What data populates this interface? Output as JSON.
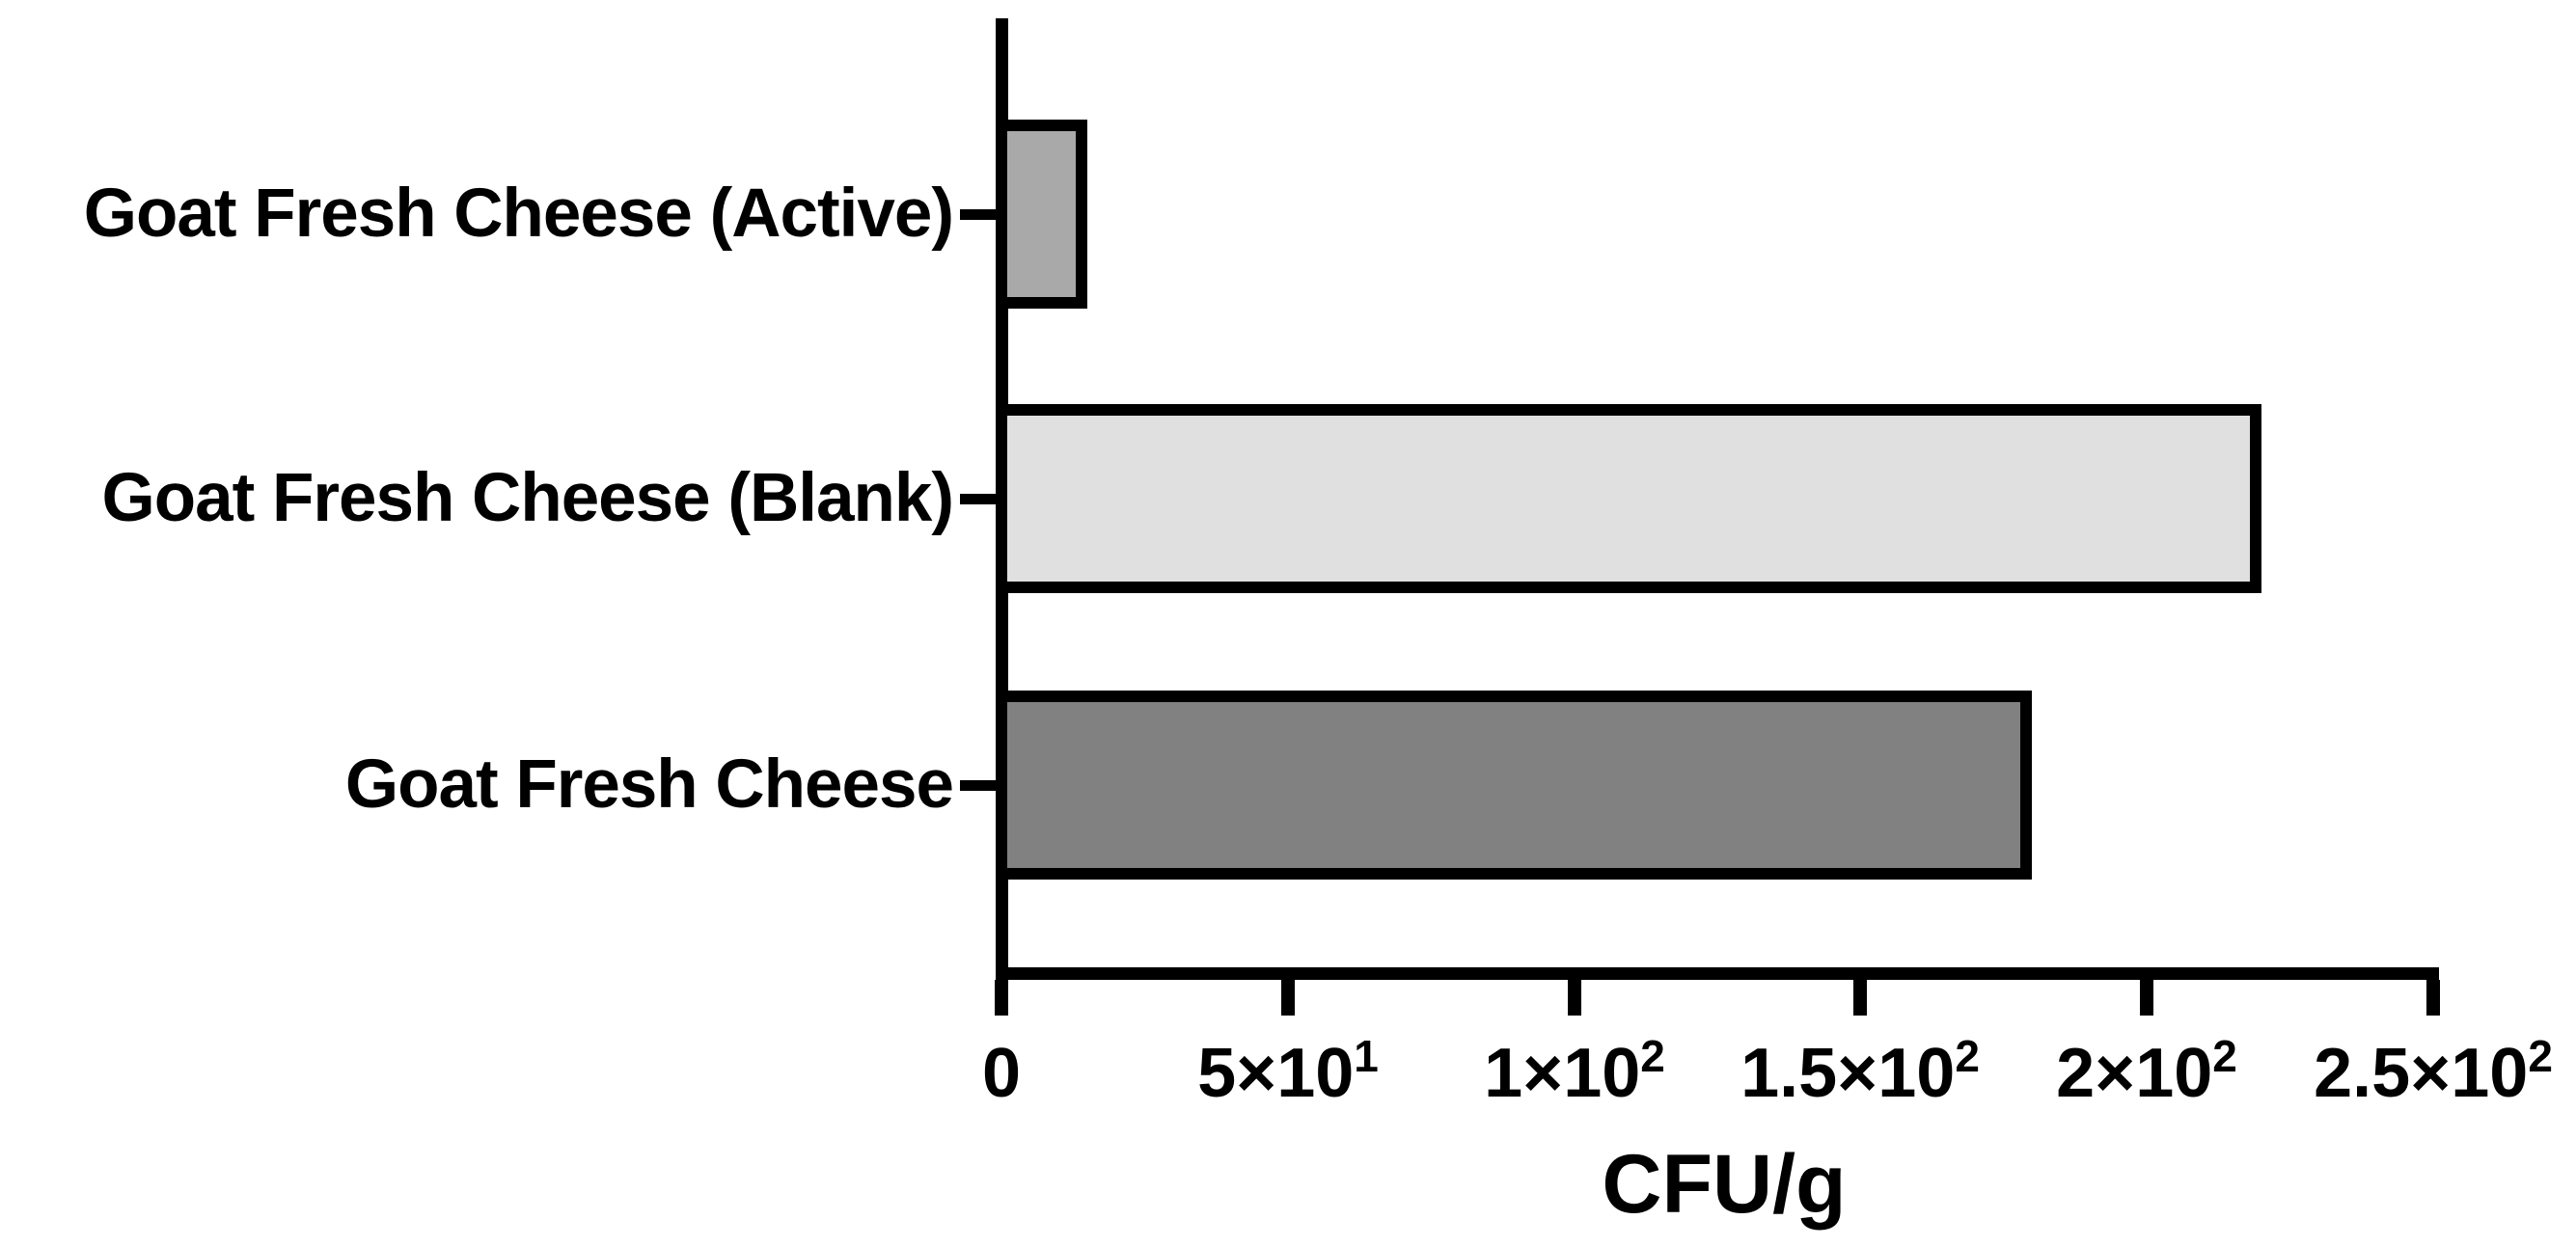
{
  "chart_data": {
    "type": "bar",
    "orientation": "horizontal",
    "title": "",
    "xlabel": "CFU/g",
    "ylabel": "",
    "categories": [
      "Goat Fresh Cheese (Active)",
      "Goat Fresh Cheese (Blank)",
      "Goat Fresh Cheese"
    ],
    "values": [
      15,
      220,
      180
    ],
    "xlim": [
      0,
      250
    ],
    "x_ticks": [
      {
        "value": 0,
        "base": "0",
        "exp": ""
      },
      {
        "value": 50,
        "base": "5×10",
        "exp": "1"
      },
      {
        "value": 100,
        "base": "1×10",
        "exp": "2"
      },
      {
        "value": 150,
        "base": "1.5×10",
        "exp": "2"
      },
      {
        "value": 200,
        "base": "2×10",
        "exp": "2"
      },
      {
        "value": 250,
        "base": "2.5×10",
        "exp": "2"
      }
    ],
    "bar_colors": [
      "#a9a9a9",
      "#e0e0e0",
      "#818181"
    ],
    "bar_border_color": "#000000",
    "axis_color": "#000000",
    "background_color": "#ffffff",
    "grid": false,
    "legend_position": "none"
  }
}
